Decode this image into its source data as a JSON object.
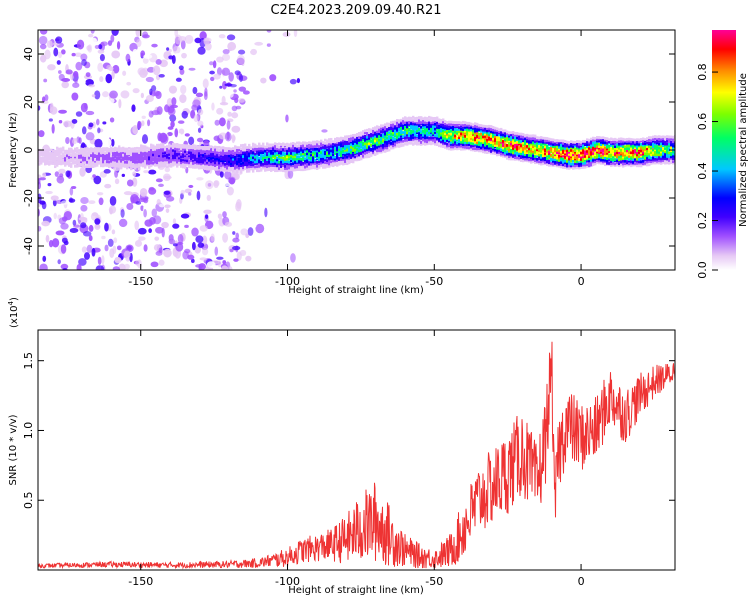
{
  "figure_title": "C2E4.2023.209.09.40.R21",
  "chart_data": [
    {
      "type": "heatmap",
      "title": "",
      "xlabel": "Height of straight line (km)",
      "ylabel": "Frequency (Hz)",
      "xlim": [
        -185,
        32
      ],
      "ylim": [
        -50,
        50
      ],
      "xticks": [
        -150,
        -100,
        -50,
        0
      ],
      "yticks": [
        -40,
        -20,
        0,
        20,
        40
      ],
      "colorbar": {
        "label": "Normalized spectral amplitude",
        "range": [
          0,
          0.97
        ],
        "ticks": [
          0.0,
          0.2,
          0.4,
          0.6,
          0.8
        ],
        "colormap": [
          "#ffffff",
          "#e6c8f5",
          "#a050ff",
          "#4000ff",
          "#0000ff",
          "#00c8ff",
          "#00ff64",
          "#7dff00",
          "#ffff00",
          "#ff8c00",
          "#ff0000",
          "#ff0096"
        ]
      },
      "ridge": {
        "name": "dominant frequency ridge",
        "x": [
          -185,
          -170,
          -150,
          -140,
          -130,
          -120,
          -110,
          -100,
          -90,
          -80,
          -70,
          -60,
          -50,
          -45,
          -40,
          -35,
          -30,
          -25,
          -20,
          -15,
          -10,
          -5,
          0,
          5,
          10,
          15,
          20,
          25,
          32
        ],
        "y": [
          -3,
          -3,
          -3,
          -2,
          -3,
          -4,
          -3,
          -3,
          -2,
          0,
          4,
          8,
          8,
          6,
          6,
          5,
          4,
          2,
          1,
          0,
          -1,
          -2,
          -2,
          0,
          -1,
          -1,
          -1,
          0,
          0
        ],
        "peak_amplitude": [
          0.1,
          0.15,
          0.2,
          0.25,
          0.3,
          0.35,
          0.45,
          0.6,
          0.5,
          0.55,
          0.6,
          0.55,
          0.5,
          0.75,
          0.8,
          0.85,
          0.85,
          0.9,
          0.85,
          0.8,
          0.9,
          0.95,
          0.95,
          0.95,
          0.9,
          0.85,
          0.9,
          0.7,
          0.6
        ]
      },
      "noise_region": {
        "x_from": -185,
        "x_to": -115,
        "y_from": -50,
        "y_to": 50,
        "amplitude": 0.15
      }
    },
    {
      "type": "line",
      "title": "",
      "xlabel": "Height of straight line (km)",
      "ylabel": "SNR (10 * v/v)",
      "multiplier": "(x10",
      "multiplier_exp": "4",
      "multiplier_close": ")",
      "xlim": [
        -185,
        32
      ],
      "ylim": [
        0,
        17200
      ],
      "xticks": [
        -150,
        -100,
        -50,
        0
      ],
      "yticks": [
        5000,
        10000,
        15000
      ],
      "ytick_labels": [
        "0.5",
        "1.0",
        "1.5"
      ],
      "color": "#ee3333",
      "series": [
        {
          "name": "SNR",
          "x": [
            -185,
            -160,
            -140,
            -120,
            -110,
            -105,
            -100,
            -95,
            -90,
            -85,
            -80,
            -75,
            -70,
            -65,
            -60,
            -55,
            -50,
            -45,
            -42,
            -40,
            -35,
            -30,
            -25,
            -20,
            -18,
            -15,
            -12,
            -10,
            -9,
            -8,
            -5,
            0,
            5,
            10,
            15,
            20,
            25,
            30,
            32
          ],
          "y": [
            300,
            400,
            350,
            400,
            500,
            700,
            900,
            1400,
            1600,
            1800,
            2200,
            3000,
            3500,
            2400,
            1400,
            1000,
            800,
            1300,
            2200,
            3000,
            5000,
            6000,
            7000,
            8500,
            7500,
            6000,
            9500,
            15000,
            4000,
            8000,
            10500,
            9500,
            10000,
            12500,
            11000,
            12500,
            13500,
            14000,
            14300
          ],
          "amplitude": [
            150,
            200,
            200,
            250,
            350,
            500,
            700,
            900,
            1000,
            1200,
            1800,
            2500,
            3000,
            2200,
            1200,
            900,
            700,
            1200,
            1800,
            2200,
            2600,
            2800,
            3000,
            3200,
            3000,
            3000,
            3200,
            2500,
            2000,
            2800,
            2800,
            2500,
            2400,
            2200,
            2000,
            1600,
            1200,
            900,
            800
          ]
        }
      ]
    }
  ]
}
